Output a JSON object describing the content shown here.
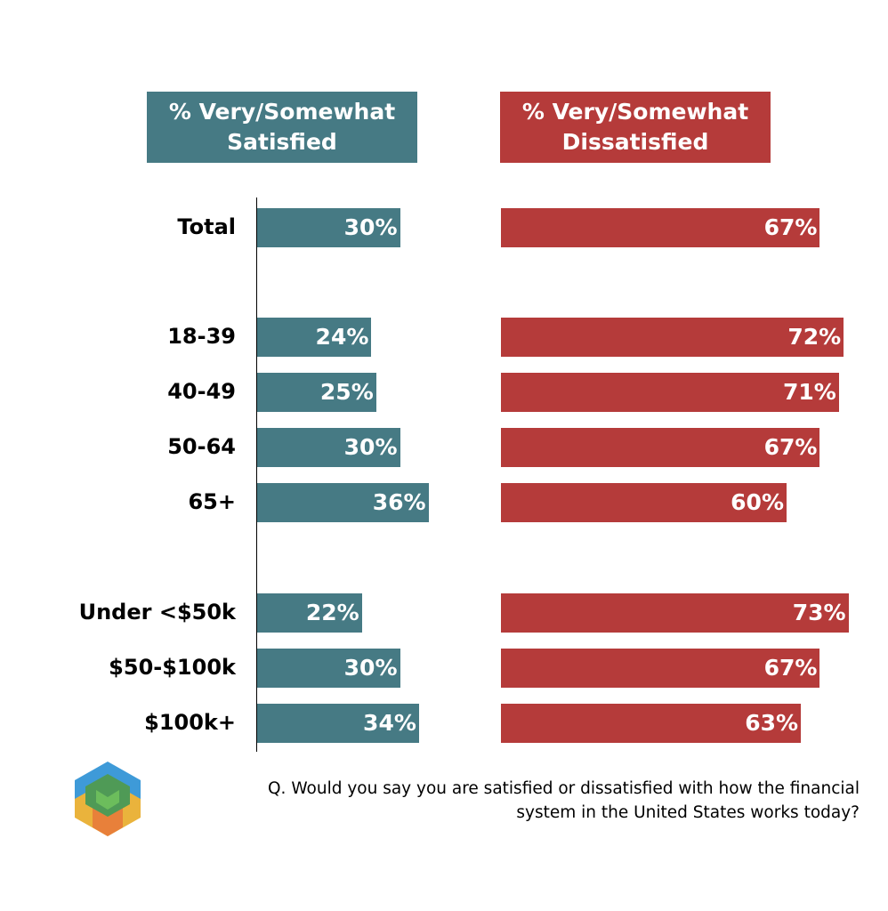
{
  "chart_data": {
    "type": "bar",
    "orientation": "horizontal",
    "categories": [
      "Total",
      "18-39",
      "40-49",
      "50-64",
      "65+",
      "Under <$50k",
      "$50-$100k",
      "$100k+"
    ],
    "groups": [
      [
        0
      ],
      [
        1,
        2,
        3,
        4
      ],
      [
        5,
        6,
        7
      ]
    ],
    "series": [
      {
        "name": "% Very/Somewhat Satisfied",
        "name_lines": [
          "% Very/Somewhat",
          "Satisfied"
        ],
        "color": "#467a84",
        "values": [
          30,
          24,
          25,
          30,
          36,
          22,
          30,
          34
        ]
      },
      {
        "name": "% Very/Somewhat Dissatisfied",
        "name_lines": [
          "% Very/Somewhat",
          "Dissatisfied"
        ],
        "color": "#b53b3a",
        "values": [
          67,
          72,
          71,
          67,
          60,
          73,
          67,
          63
        ]
      }
    ],
    "value_format": "{v}%",
    "grid": false
  },
  "footnote": [
    "Q. Would you say you are satisfied or dissatisfied with how the financial",
    "system in the United States works today?"
  ],
  "logo": "cube-logo"
}
